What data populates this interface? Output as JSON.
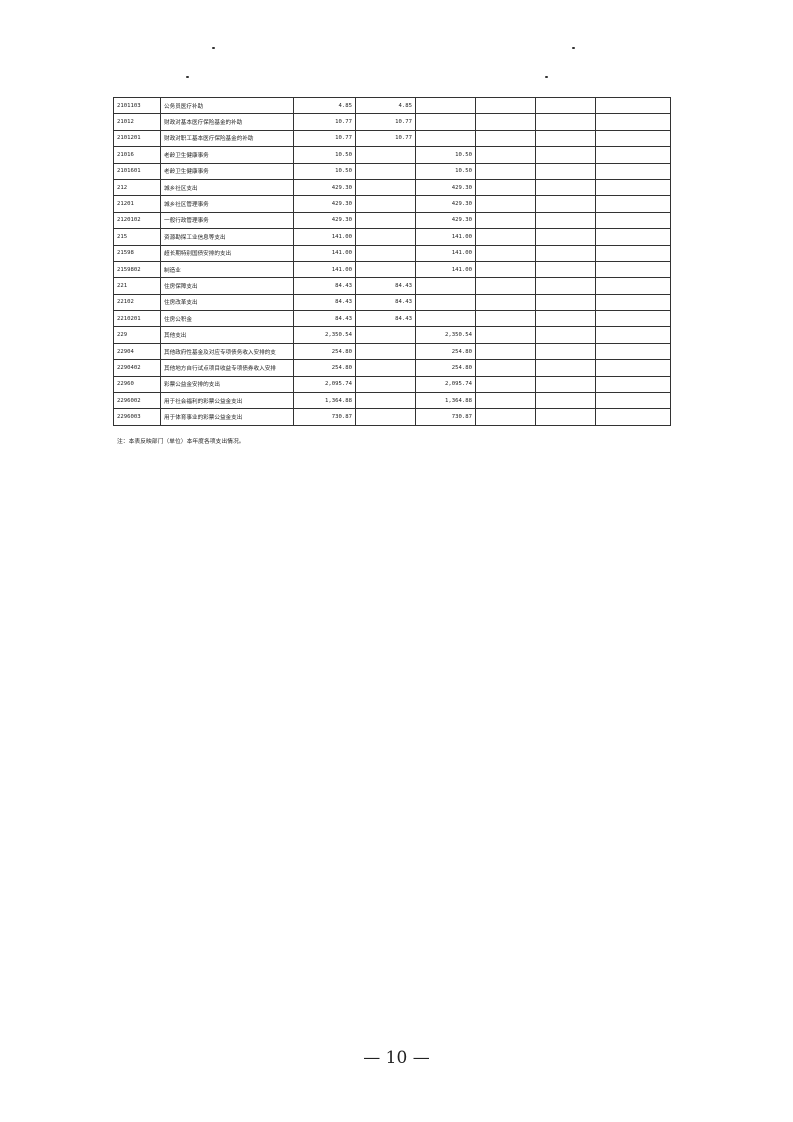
{
  "table": {
    "rows": [
      {
        "code": "2101103",
        "name": "公务员医疗补助",
        "total": "4.85",
        "basic": "4.85"
      },
      {
        "code": "21012",
        "name": "财政对基本医疗保险基金的补助",
        "total": "10.77",
        "basic": "10.77"
      },
      {
        "code": "2101201",
        "name": "财政对职工基本医疗保险基金的补助",
        "total": "10.77",
        "basic": "10.77"
      },
      {
        "code": "21016",
        "name": "老龄卫生健康事务",
        "total": "10.50",
        "project": "10.50"
      },
      {
        "code": "2101601",
        "name": "老龄卫生健康事务",
        "total": "10.50",
        "project": "10.50"
      },
      {
        "code": "212",
        "name": "城乡社区支出",
        "total": "429.30",
        "project": "429.30"
      },
      {
        "code": "21201",
        "name": "城乡社区管理事务",
        "total": "429.30",
        "project": "429.30"
      },
      {
        "code": "2120102",
        "name": "一般行政管理事务",
        "total": "429.30",
        "project": "429.30"
      },
      {
        "code": "215",
        "name": "资源勘探工业信息等支出",
        "total": "141.00",
        "project": "141.00"
      },
      {
        "code": "21598",
        "name": "超长期特别国债安排的支出",
        "total": "141.00",
        "project": "141.00"
      },
      {
        "code": "2159802",
        "name": "制造业",
        "total": "141.00",
        "project": "141.00"
      },
      {
        "code": "221",
        "name": "住房保障支出",
        "total": "84.43",
        "basic": "84.43"
      },
      {
        "code": "22102",
        "name": "住房改革支出",
        "total": "84.43",
        "basic": "84.43"
      },
      {
        "code": "2210201",
        "name": "住房公积金",
        "total": "84.43",
        "basic": "84.43"
      },
      {
        "code": "229",
        "name": "其他支出",
        "total": "2,350.54",
        "project": "2,350.54"
      },
      {
        "code": "22904",
        "name": "其他政府性基金及对应专项债务收入安排的支",
        "total": "254.80",
        "project": "254.80"
      },
      {
        "code": "2290402",
        "name": "其他地方自行试点项目收益专项债券收入安排",
        "total": "254.80",
        "project": "254.80"
      },
      {
        "code": "22960",
        "name": "彩票公益金安排的支出",
        "total": "2,095.74",
        "project": "2,095.74"
      },
      {
        "code": "2296002",
        "name": "用于社会福利的彩票公益金支出",
        "total": "1,364.88",
        "project": "1,364.88"
      },
      {
        "code": "2296003",
        "name": "用于体育事业的彩票公益金支出",
        "total": "730.87",
        "project": "730.87"
      }
    ]
  },
  "note": "注：本表反映部门（单位）本年度各项支出情况。",
  "page_number": "— 10 —"
}
